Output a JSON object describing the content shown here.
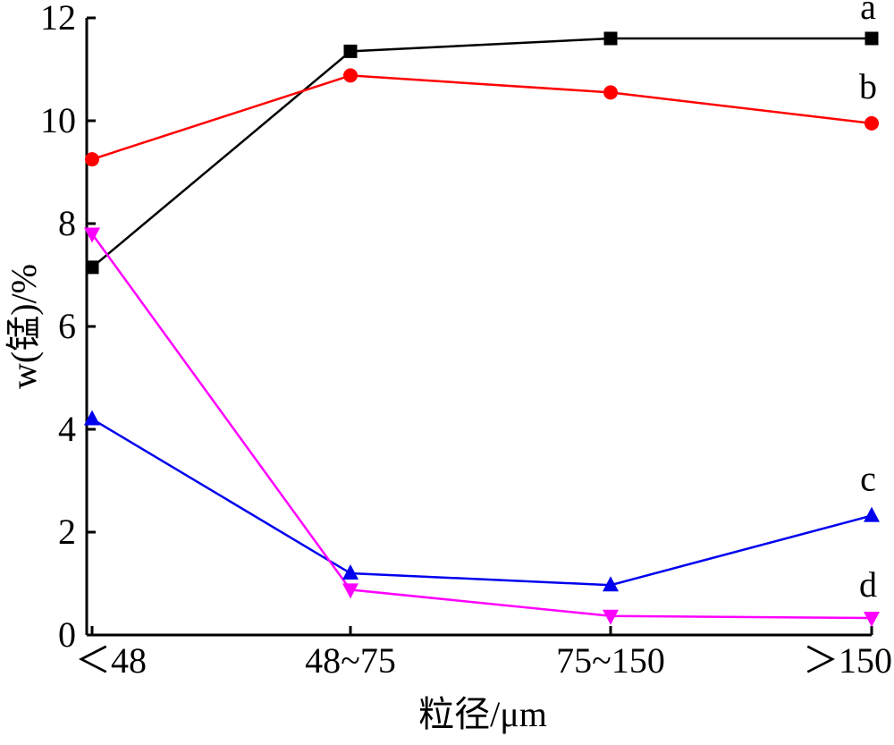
{
  "chart_data": {
    "type": "line",
    "categories": [
      "<48",
      "48~75",
      "75~150",
      ">150"
    ],
    "category_labels": [
      "＜48",
      "48~75",
      "75~150",
      "＞150"
    ],
    "xlabel": "粒径/μm",
    "ylabel": "w(锰)/%",
    "ylim": [
      0,
      12
    ],
    "yticks": [
      0,
      2,
      4,
      6,
      8,
      10,
      12
    ],
    "grid": false,
    "legend": "none (series tagged at right end)",
    "series": [
      {
        "name": "a",
        "marker": "square",
        "color": "#000000",
        "values": [
          7.15,
          11.35,
          11.6,
          11.6
        ]
      },
      {
        "name": "b",
        "marker": "circle",
        "color": "#ff0000",
        "values": [
          9.25,
          10.88,
          10.55,
          9.95
        ]
      },
      {
        "name": "c",
        "marker": "triangle-up",
        "color": "#0000ee",
        "values": [
          4.2,
          1.2,
          0.97,
          2.32
        ]
      },
      {
        "name": "d",
        "marker": "triangle-down",
        "color": "#ff00ff",
        "values": [
          7.8,
          0.88,
          0.37,
          0.33
        ]
      }
    ]
  }
}
